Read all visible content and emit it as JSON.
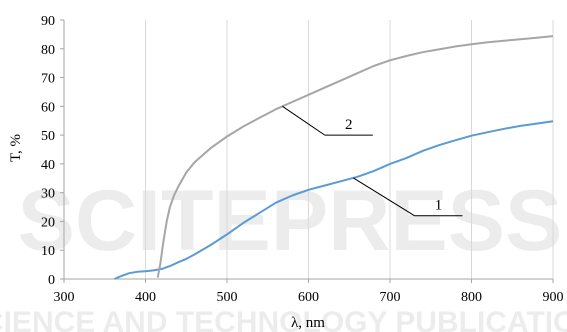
{
  "chart_data": {
    "type": "line",
    "xlabel": "λ, nm",
    "ylabel": "T, %",
    "xlim": [
      300,
      900
    ],
    "ylim": [
      0,
      90
    ],
    "xticks": [
      300,
      400,
      500,
      600,
      700,
      800,
      900
    ],
    "yticks": [
      0,
      10,
      20,
      30,
      40,
      50,
      60,
      70,
      80,
      90
    ],
    "grid": "vertical",
    "series": [
      {
        "name": "1",
        "color": "#5b9bd5",
        "x": [
          362,
          370,
          380,
          390,
          400,
          410,
          420,
          430,
          440,
          450,
          460,
          480,
          500,
          520,
          540,
          560,
          580,
          600,
          620,
          640,
          660,
          680,
          700,
          720,
          740,
          760,
          780,
          800,
          820,
          840,
          860,
          880,
          900
        ],
        "y": [
          0,
          1,
          2,
          2.5,
          2.7,
          3,
          3.5,
          4.5,
          5.8,
          7,
          8.5,
          11.8,
          15.5,
          19.5,
          23,
          26.5,
          29,
          31,
          32.5,
          34,
          35.5,
          37.5,
          40,
          42,
          44.5,
          46.5,
          48.2,
          49.8,
          51,
          52.2,
          53.2,
          54,
          54.8
        ]
      },
      {
        "name": "2",
        "color": "#a6a6a6",
        "x": [
          415,
          418,
          422,
          426,
          430,
          435,
          440,
          450,
          460,
          480,
          500,
          520,
          540,
          560,
          580,
          600,
          620,
          640,
          660,
          680,
          700,
          720,
          740,
          760,
          780,
          800,
          820,
          840,
          860,
          880,
          900
        ],
        "y": [
          0.5,
          5,
          13,
          20,
          25,
          29,
          32,
          37,
          40.5,
          45.5,
          49.5,
          53,
          56,
          59,
          61.5,
          64,
          66.5,
          69,
          71.5,
          74,
          76,
          77.5,
          78.8,
          79.8,
          80.8,
          81.6,
          82.3,
          82.8,
          83.3,
          83.8,
          84.4
        ]
      }
    ],
    "annotations": [
      {
        "text": "2",
        "series": "2",
        "at_x": 568,
        "label_x": 620,
        "label_y": 50
      },
      {
        "text": "1",
        "series": "1",
        "at_x": 655,
        "label_x": 730,
        "label_y": 22
      }
    ]
  },
  "watermark": {
    "big": "SCITEPRESS",
    "small": "SCIENCE AND TECHNOLOGY PUBLICATIONS",
    "color": "#000000"
  }
}
